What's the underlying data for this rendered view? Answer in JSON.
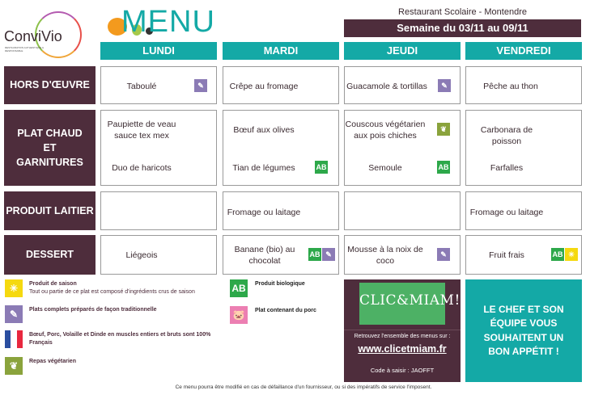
{
  "brand": {
    "name": "ConviVio",
    "tagline": "RESTAURATION AUTHENTIQUE & RESPONSABLE"
  },
  "title": "MENU",
  "restaurant": "Restaurant Scolaire - Montendre",
  "week": "Semaine du 03/11 au 09/11",
  "days": [
    "LUNDI",
    "MARDI",
    "JEUDI",
    "VENDREDI"
  ],
  "rows": [
    {
      "label": "HORS D'ŒUVRE",
      "cells": [
        [
          "Taboulé"
        ],
        [
          "Crêpe au fromage"
        ],
        [
          "Guacamole & tortillas"
        ],
        [
          "Pêche au thon"
        ]
      ]
    },
    {
      "label": "PLAT CHAUD ET GARNITURES",
      "cells": [
        [
          "Paupiette de veau sauce tex mex",
          "Duo de haricots"
        ],
        [
          "Bœuf aux olives",
          "Tian de légumes"
        ],
        [
          "Couscous végétarien aux pois chiches",
          "Semoule"
        ],
        [
          "Carbonara de poisson",
          "Farfalles"
        ]
      ]
    },
    {
      "label": "PRODUIT LAITIER",
      "cells": [
        [
          ""
        ],
        [
          "Fromage ou laitage"
        ],
        [
          ""
        ],
        [
          "Fromage ou laitage"
        ]
      ]
    },
    {
      "label": "DESSERT",
      "cells": [
        [
          "Liégeois"
        ],
        [
          "Banane (bio) au chocolat"
        ],
        [
          "Mousse à la noix de coco"
        ],
        [
          "Fruit frais"
        ]
      ]
    }
  ],
  "icon_colors": {
    "whisk": "#8b7bb5",
    "bio": "#2da84a",
    "vegetarian": "#8aa33c",
    "season": "#f5d90f",
    "pork": "#ec7fb2",
    "primary": "#4e2d3c",
    "accent": "#14a9a6"
  },
  "legend": {
    "season": {
      "title": "Produit de saison",
      "desc": "Tout ou partie de ce plat est composé d'ingrédients crus de saison"
    },
    "traditional": "Plats complets préparés de façon traditionnelle",
    "french": "Bœuf, Porc, Volaille et Dinde en muscles entiers et bruts sont 100% Français",
    "vegetarian": "Repas végétarien",
    "bio": "Produit biologique",
    "pork": "Plat contenant du porc"
  },
  "promo": {
    "logo": "CLIC&MIAM!",
    "text": "Retrouvez l'ensemble des menus sur :",
    "url": "www.clicetmiam.fr",
    "code": "Code à saisir : JAOFFT"
  },
  "chef_message": "LE CHEF ET SON ÉQUIPE VOUS SOUHAITENT UN BON APPÉTIT !",
  "footer": "Ce menu pourra être modifié en cas de défaillance d'un fournisseur, ou si des impératifs de service l'imposent."
}
